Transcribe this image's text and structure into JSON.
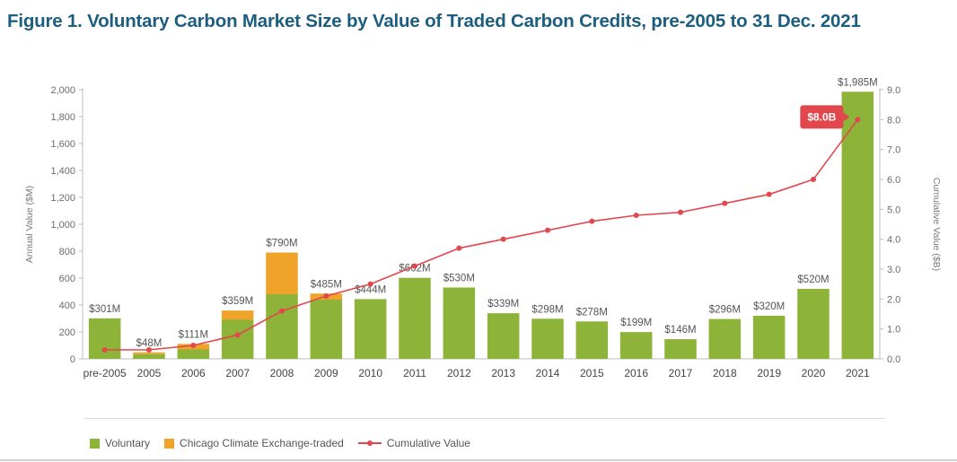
{
  "title": "Figure 1. Voluntary Carbon Market Size by Value of Traded Carbon Credits, pre-2005 to 31 Dec. 2021",
  "colors": {
    "voluntary": "#8db339",
    "ccx": "#f0a32a",
    "cumulative": "#e2474d",
    "title": "#1d5d7e"
  },
  "chart_data": {
    "type": "bar",
    "categories": [
      "pre-2005",
      "2005",
      "2006",
      "2007",
      "2008",
      "2009",
      "2010",
      "2011",
      "2012",
      "2013",
      "2014",
      "2015",
      "2016",
      "2017",
      "2018",
      "2019",
      "2020",
      "2021"
    ],
    "series": [
      {
        "name": "Voluntary",
        "type": "bar",
        "axis": "left",
        "values": [
          301,
          35,
          70,
          290,
          480,
          440,
          444,
          602,
          530,
          339,
          298,
          278,
          199,
          146,
          296,
          320,
          520,
          1985
        ]
      },
      {
        "name": "Chicago Climate Exchange-traded",
        "type": "bar",
        "axis": "left",
        "values": [
          0,
          13,
          41,
          69,
          310,
          45,
          0,
          0,
          0,
          0,
          0,
          0,
          0,
          0,
          0,
          0,
          0,
          0
        ]
      },
      {
        "name": "Cumulative Value",
        "type": "line",
        "axis": "right",
        "values": [
          0.3,
          0.3,
          0.45,
          0.8,
          1.6,
          2.1,
          2.5,
          3.1,
          3.7,
          4.0,
          4.3,
          4.6,
          4.8,
          4.9,
          5.2,
          5.5,
          6.0,
          8.0
        ]
      }
    ],
    "bar_labels": [
      "$301M",
      "$48M",
      "$111M",
      "$359M",
      "$790M",
      "$485M",
      "$444M",
      "$602M",
      "$530M",
      "$339M",
      "$298M",
      "$278M",
      "$199M",
      "$146M",
      "$296M",
      "$320M",
      "$520M",
      "$1,985M"
    ],
    "callout": "$8.0B",
    "ylabel": "Annual Value ($M)",
    "y2label": "Cumulative Value ($B)",
    "ylim": [
      0,
      2000
    ],
    "y2lim": [
      0,
      9
    ],
    "yticks": [
      "0",
      "200",
      "400",
      "600",
      "800",
      "1,000",
      "1,200",
      "1,400",
      "1,600",
      "1,800",
      "2,000"
    ],
    "y2ticks": [
      "0.0",
      "1.0",
      "2.0",
      "3.0",
      "4.0",
      "5.0",
      "6.0",
      "7.0",
      "8.0",
      "9.0"
    ],
    "grid": false,
    "legend": "bottom"
  }
}
